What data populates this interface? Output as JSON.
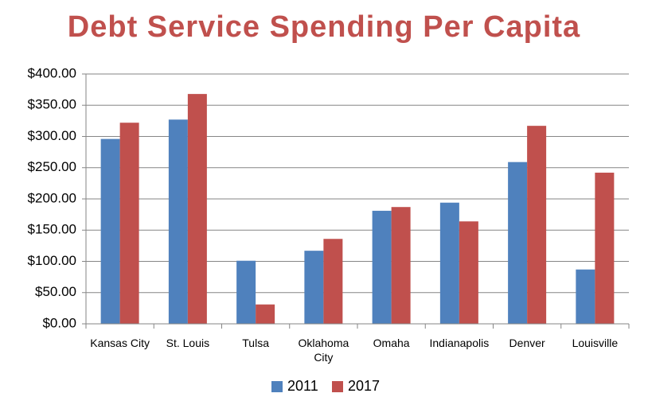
{
  "chart_data": {
    "type": "bar",
    "title": "Debt Service Spending Per Capita",
    "categories": [
      "Kansas City",
      "St. Louis",
      "Tulsa",
      "Oklahoma City",
      "Omaha",
      "Indianapolis",
      "Denver",
      "Louisville"
    ],
    "series": [
      {
        "name": "2011",
        "color": "#4f81bd",
        "values": [
          296,
          327,
          101,
          117,
          181,
          194,
          259,
          87
        ]
      },
      {
        "name": "2017",
        "color": "#c0504d",
        "values": [
          322,
          368,
          31,
          136,
          187,
          164,
          317,
          242
        ]
      }
    ],
    "ylim": [
      0,
      400
    ],
    "yticks": [
      {
        "value": 0,
        "label": "$0.00"
      },
      {
        "value": 50,
        "label": "$50.00"
      },
      {
        "value": 100,
        "label": "$100.00"
      },
      {
        "value": 150,
        "label": "$150.00"
      },
      {
        "value": 200,
        "label": "$200.00"
      },
      {
        "value": 250,
        "label": "$250.00"
      },
      {
        "value": 300,
        "label": "$300.00"
      },
      {
        "value": 350,
        "label": "$350.00"
      },
      {
        "value": 400,
        "label": "$400.00"
      }
    ],
    "grid": true,
    "legend": "bottom"
  }
}
